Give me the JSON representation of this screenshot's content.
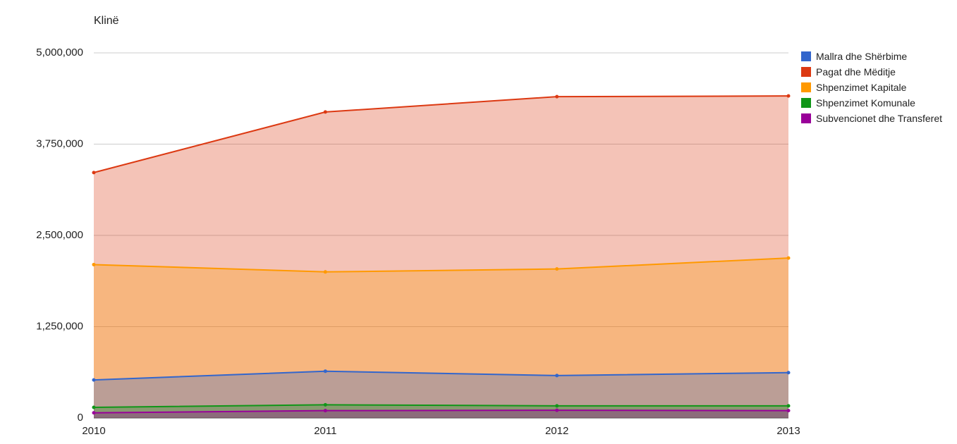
{
  "chart_data": {
    "type": "area",
    "title": "Klinë",
    "categories": [
      "2010",
      "2011",
      "2012",
      "2013"
    ],
    "series": [
      {
        "name": "Mallra dhe Shërbime",
        "color": "#3366cc",
        "values": [
          520000,
          640000,
          580000,
          620000
        ]
      },
      {
        "name": "Pagat dhe Mëditje",
        "color": "#dc3912",
        "values": [
          3360000,
          4190000,
          4400000,
          4410000
        ]
      },
      {
        "name": "Shpenzimet Kapitale",
        "color": "#ff9900",
        "values": [
          2100000,
          2000000,
          2040000,
          2190000
        ]
      },
      {
        "name": "Shpenzimet Komunale",
        "color": "#109618",
        "values": [
          145000,
          180000,
          165000,
          165000
        ]
      },
      {
        "name": "Subvencionet dhe Transferet",
        "color": "#990099",
        "values": [
          70000,
          100000,
          105000,
          100000
        ]
      }
    ],
    "ylim": [
      0,
      5000000
    ],
    "yticks": [
      {
        "value": 0,
        "label": "0"
      },
      {
        "value": 1250000,
        "label": "1,250,000"
      },
      {
        "value": 2500000,
        "label": "2,500,000"
      },
      {
        "value": 3750000,
        "label": "3,750,000"
      },
      {
        "value": 5000000,
        "label": "5,000,000"
      }
    ],
    "grid": true,
    "legend": "right"
  }
}
